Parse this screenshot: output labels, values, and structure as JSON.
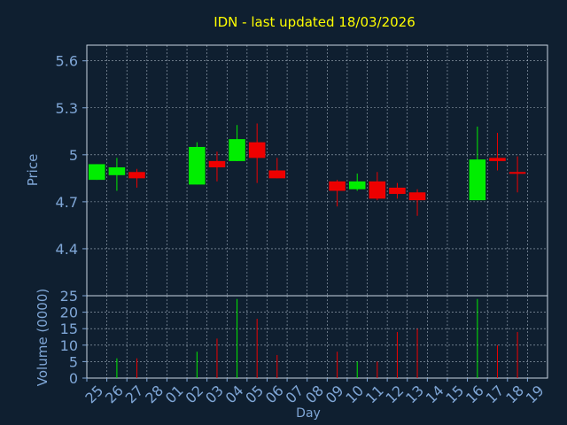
{
  "title": "IDN - last updated 18/03/2026",
  "colors": {
    "background": "#0f1f30",
    "title": "#ffff00",
    "axis": "#7fa6d6",
    "grid": "#c8d4e2",
    "frame": "#c8d4e2",
    "up": "#00ee00",
    "down": "#ee0000"
  },
  "chart_data": [
    {
      "type": "candlestick",
      "ylabel": "Price",
      "ylim": [
        4.1,
        5.7
      ],
      "yticks": [
        4.4,
        4.7,
        5,
        5.3,
        5.6
      ],
      "ytick_labels": [
        "4.4",
        "4.7",
        "5",
        "5.3",
        "5.6"
      ],
      "grid": true,
      "x": [
        "25",
        "26",
        "27",
        "28",
        "01",
        "02",
        "03",
        "04",
        "05",
        "06",
        "07",
        "08",
        "09",
        "10",
        "11",
        "12",
        "13",
        "14",
        "15",
        "16",
        "17",
        "18",
        "19"
      ],
      "candles": [
        {
          "day": "25",
          "open": 4.84,
          "close": 4.94,
          "high": 4.94,
          "low": 4.84
        },
        {
          "day": "26",
          "open": 4.87,
          "close": 4.92,
          "high": 4.98,
          "low": 4.77
        },
        {
          "day": "27",
          "open": 4.89,
          "close": 4.85,
          "high": 4.91,
          "low": 4.79
        },
        {
          "day": "02",
          "open": 4.81,
          "close": 5.05,
          "high": 5.08,
          "low": 4.81
        },
        {
          "day": "03",
          "open": 4.96,
          "close": 4.92,
          "high": 5.02,
          "low": 4.83
        },
        {
          "day": "04",
          "open": 4.96,
          "close": 5.1,
          "high": 5.19,
          "low": 4.96
        },
        {
          "day": "05",
          "open": 5.08,
          "close": 4.98,
          "high": 5.2,
          "low": 4.82
        },
        {
          "day": "06",
          "open": 4.9,
          "close": 4.85,
          "high": 4.98,
          "low": 4.85
        },
        {
          "day": "09",
          "open": 4.83,
          "close": 4.77,
          "high": 4.84,
          "low": 4.67
        },
        {
          "day": "10",
          "open": 4.78,
          "close": 4.83,
          "high": 4.88,
          "low": 4.77
        },
        {
          "day": "11",
          "open": 4.83,
          "close": 4.72,
          "high": 4.89,
          "low": 4.71
        },
        {
          "day": "12",
          "open": 4.79,
          "close": 4.75,
          "high": 4.82,
          "low": 4.72
        },
        {
          "day": "13",
          "open": 4.76,
          "close": 4.71,
          "high": 4.78,
          "low": 4.61
        },
        {
          "day": "16",
          "open": 4.71,
          "close": 4.97,
          "high": 5.18,
          "low": 4.71
        },
        {
          "day": "17",
          "open": 4.98,
          "close": 4.96,
          "high": 5.14,
          "low": 4.9
        },
        {
          "day": "18",
          "open": 4.89,
          "close": 4.89,
          "high": 4.99,
          "low": 4.76
        }
      ]
    },
    {
      "type": "bar",
      "ylabel": "Volume (0000)",
      "xlabel": "Day",
      "ylim": [
        0,
        25
      ],
      "yticks": [
        0,
        5,
        10,
        15,
        20,
        25
      ],
      "ytick_labels": [
        "0",
        "5",
        "10",
        "15",
        "20",
        "25"
      ],
      "grid": true,
      "categories": [
        "25",
        "26",
        "27",
        "28",
        "01",
        "02",
        "03",
        "04",
        "05",
        "06",
        "07",
        "08",
        "09",
        "10",
        "11",
        "12",
        "13",
        "14",
        "15",
        "16",
        "17",
        "18",
        "19"
      ],
      "bars": [
        {
          "day": "26",
          "value": 6,
          "direction": "up"
        },
        {
          "day": "27",
          "value": 6,
          "direction": "down"
        },
        {
          "day": "02",
          "value": 8,
          "direction": "up"
        },
        {
          "day": "03",
          "value": 12,
          "direction": "down"
        },
        {
          "day": "04",
          "value": 24,
          "direction": "up"
        },
        {
          "day": "05",
          "value": 18,
          "direction": "down"
        },
        {
          "day": "06",
          "value": 7,
          "direction": "down"
        },
        {
          "day": "09",
          "value": 8,
          "direction": "down"
        },
        {
          "day": "10",
          "value": 5,
          "direction": "up"
        },
        {
          "day": "11",
          "value": 5,
          "direction": "down"
        },
        {
          "day": "12",
          "value": 14,
          "direction": "down"
        },
        {
          "day": "13",
          "value": 15,
          "direction": "down"
        },
        {
          "day": "16",
          "value": 24,
          "direction": "up"
        },
        {
          "day": "17",
          "value": 10,
          "direction": "down"
        },
        {
          "day": "18",
          "value": 14,
          "direction": "down"
        }
      ]
    }
  ]
}
